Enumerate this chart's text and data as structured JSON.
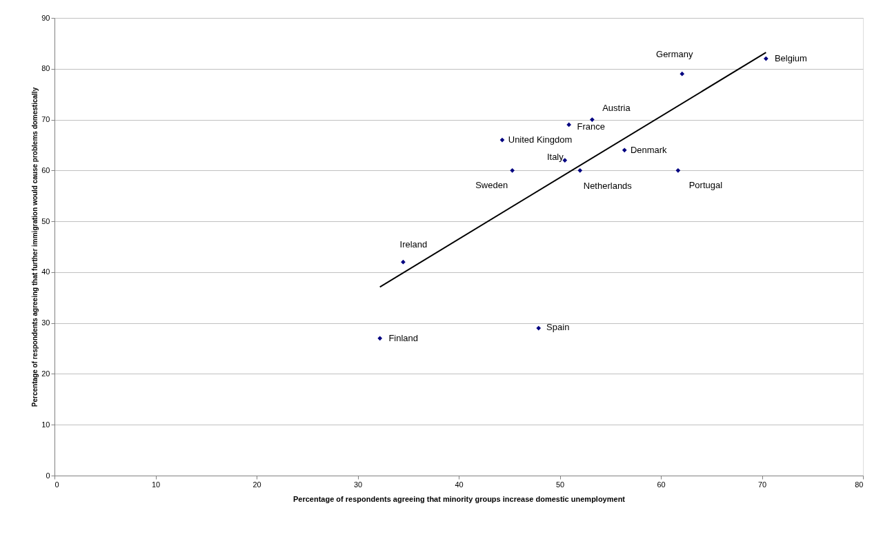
{
  "chart_data": {
    "type": "scatter",
    "xlabel": "Percentage of respondents agreeing that minority groups increase domestic unemployment",
    "ylabel": "Percentage of respondents agreeing that further immigration would cause problems domestically",
    "x": [
      32.2,
      34.5,
      47.9,
      45.3,
      44.3,
      50.5,
      52.0,
      50.9,
      53.2,
      56.4,
      61.7,
      62.1,
      70.4
    ],
    "series": [
      {
        "color": "#000080",
        "values": [
          27,
          42,
          29,
          60,
          66,
          62,
          60,
          69,
          70,
          64,
          60,
          79,
          82
        ]
      },
      {
        "type": "line",
        "marker": "none",
        "color": "#000000",
        "x": [
          32.2,
          70.4
        ],
        "values": [
          37.1,
          83.2
        ]
      }
    ],
    "annotations": [
      {
        "text": "Finland",
        "x": 32.2,
        "y": 27
      },
      {
        "text": "Ireland",
        "x": 34.5,
        "y": 42
      },
      {
        "text": "Spain",
        "x": 47.9,
        "y": 29
      },
      {
        "text": "Sweden",
        "x": 45.3,
        "y": 60
      },
      {
        "text": "United Kingdom",
        "x": 44.3,
        "y": 66
      },
      {
        "text": "Italy",
        "x": 50.5,
        "y": 62
      },
      {
        "text": "Netherlands",
        "x": 52.0,
        "y": 60
      },
      {
        "text": "France",
        "x": 50.9,
        "y": 69
      },
      {
        "text": "Austria",
        "x": 53.2,
        "y": 70
      },
      {
        "text": "Denmark",
        "x": 56.4,
        "y": 64
      },
      {
        "text": "Portugal",
        "x": 61.7,
        "y": 60
      },
      {
        "text": "Germany",
        "x": 62.1,
        "y": 79
      },
      {
        "text": "Belgium",
        "x": 70.4,
        "y": 82
      }
    ],
    "xlim": [
      0,
      80
    ],
    "xticks": [
      0,
      10,
      20,
      30,
      40,
      50,
      60,
      70,
      80
    ],
    "ylim": [
      0,
      90
    ],
    "yticks": [
      0,
      10,
      20,
      30,
      40,
      50,
      60,
      70,
      80,
      90
    ],
    "grid": "y",
    "marker": "diamond",
    "line_style": "solid"
  }
}
